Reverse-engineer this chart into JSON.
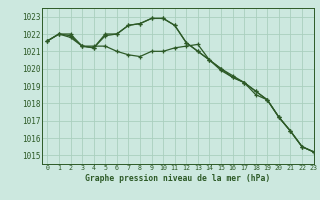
{
  "background_color": "#cce8df",
  "grid_color": "#aacfbe",
  "line_color": "#2d5a27",
  "title": "Graphe pression niveau de la mer (hPa)",
  "xlim": [
    -0.5,
    23
  ],
  "ylim": [
    1014.5,
    1023.5
  ],
  "yticks": [
    1015,
    1016,
    1017,
    1018,
    1019,
    1020,
    1021,
    1022,
    1023
  ],
  "xticks": [
    0,
    1,
    2,
    3,
    4,
    5,
    6,
    7,
    8,
    9,
    10,
    11,
    12,
    13,
    14,
    15,
    16,
    17,
    18,
    19,
    20,
    21,
    22,
    23
  ],
  "series": [
    [
      1021.6,
      1022.0,
      1021.8,
      1021.3,
      1021.3,
      1021.3,
      1021.0,
      1020.8,
      1020.7,
      1021.0,
      1021.0,
      1021.2,
      1021.3,
      1021.4,
      1020.5,
      1019.9,
      1019.5,
      1019.2,
      1018.5,
      1018.2,
      1017.2,
      1016.4,
      1015.5,
      1015.2
    ],
    [
      1021.6,
      1022.0,
      1021.9,
      1021.3,
      1021.2,
      1021.9,
      1022.0,
      1022.5,
      1022.6,
      1022.9,
      1022.9,
      1022.5,
      1021.5,
      1021.0,
      1020.5,
      1020.0,
      1019.5,
      1019.2,
      1018.7,
      1018.2,
      1017.2,
      1016.4,
      1015.5,
      1015.2
    ],
    [
      1021.6,
      1022.0,
      1022.0,
      1021.3,
      1021.2,
      1022.0,
      1022.0,
      1022.5,
      1022.6,
      1022.9,
      1022.9,
      1022.5,
      1021.5,
      1021.0,
      1020.5,
      1020.0,
      1019.6,
      1019.2,
      1018.7,
      1018.2,
      1017.2,
      1016.4,
      1015.5,
      1015.2
    ]
  ],
  "figsize": [
    3.2,
    2.0
  ],
  "dpi": 100
}
